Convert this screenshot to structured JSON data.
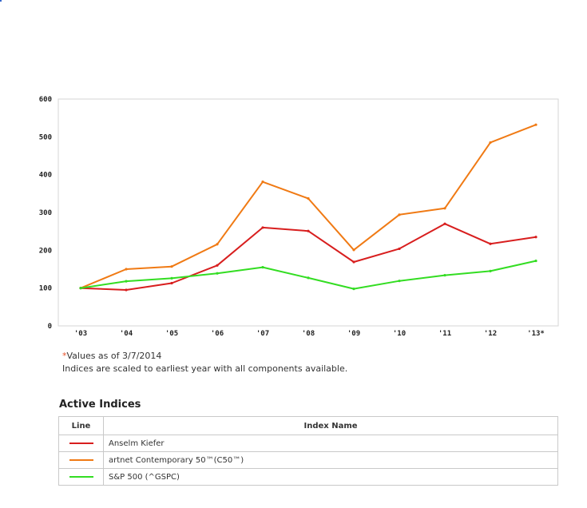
{
  "chart_data": {
    "type": "line",
    "categories": [
      "'03",
      "'04",
      "'05",
      "'06",
      "'07",
      "'08",
      "'09",
      "'10",
      "'11",
      "'12",
      "'13*"
    ],
    "yticks": [
      "0",
      "100",
      "200",
      "300",
      "400",
      "500",
      "600"
    ],
    "ylim": [
      0,
      600
    ],
    "grid": false,
    "series": [
      {
        "name": "artnet Contemporary 50™(C50™)",
        "color": "#f07a14",
        "values": [
          100,
          150,
          157,
          216,
          381,
          337,
          201,
          294,
          311,
          485,
          532
        ]
      },
      {
        "name": "Anselm Kiefer",
        "color": "#d81e1e",
        "values": [
          100,
          95,
          113,
          160,
          260,
          251,
          169,
          204,
          270,
          217,
          235
        ]
      },
      {
        "name": "S&P 500 (^GSPC)",
        "color": "#33dd22",
        "values": [
          100,
          118,
          126,
          139,
          155,
          127,
          98,
          119,
          134,
          145,
          172
        ]
      }
    ]
  },
  "notes": {
    "star": "*",
    "values_as_of": "Values as of 3/7/2014",
    "scaling": "Indices are scaled to earliest year with all components available."
  },
  "indices": {
    "title": "Active Indices",
    "headers": {
      "line": "Line",
      "name": "Index Name"
    },
    "rows": [
      {
        "color": "#d81e1e",
        "name": "Anselm Kiefer"
      },
      {
        "color": "#f07a14",
        "name": "artnet Contemporary 50™(C50™)"
      },
      {
        "color": "#33dd22",
        "name": "S&P 500 (^GSPC)"
      }
    ]
  }
}
